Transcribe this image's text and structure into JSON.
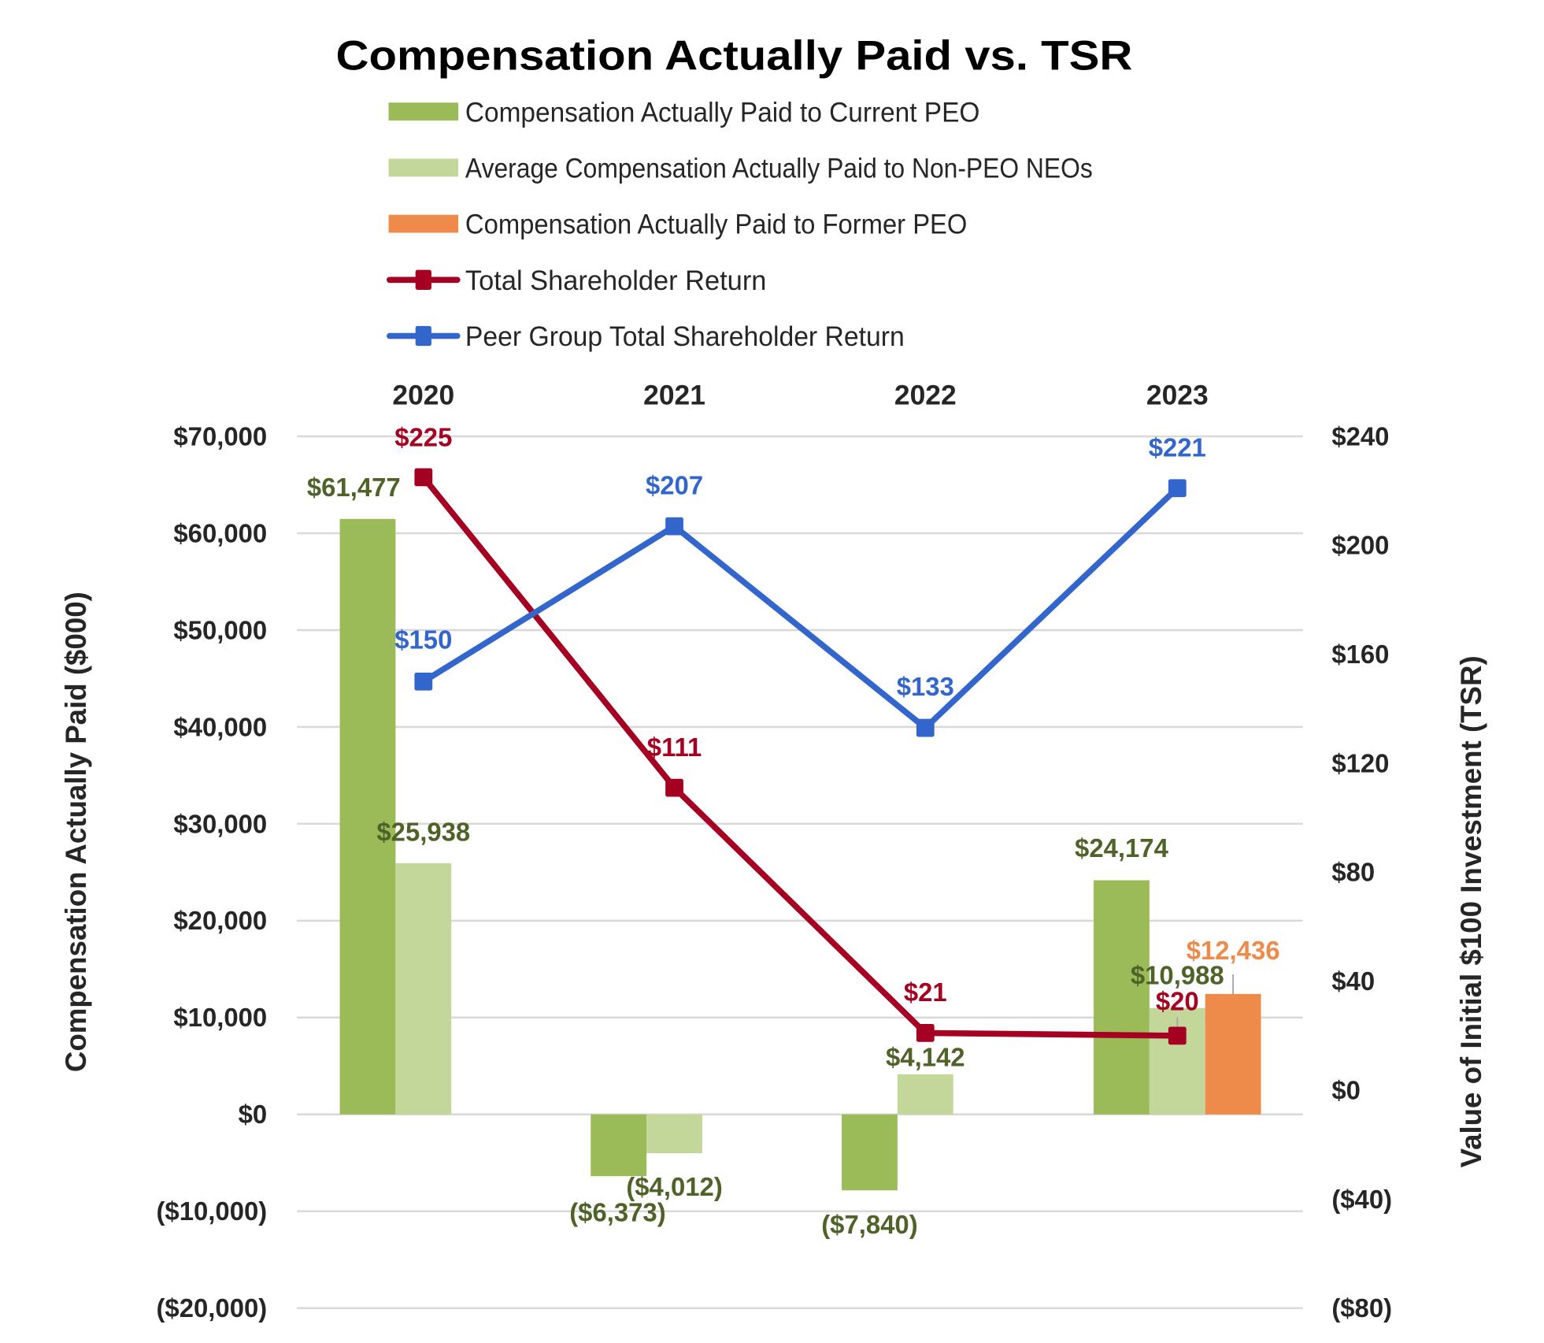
{
  "chart_data": {
    "type": "bar",
    "title": "Compensation Actually Paid vs. TSR",
    "categories": [
      "2020",
      "2021",
      "2022",
      "2023"
    ],
    "ylabel": "Compensation Actually Paid ($000)",
    "y2label": "Value of Initial $100 Investment (TSR)",
    "ylim": [
      -20000,
      70000
    ],
    "y2lim": [
      -80,
      240
    ],
    "yticks": [
      "$70,000",
      "$60,000",
      "$50,000",
      "$40,000",
      "$30,000",
      "$20,000",
      "$10,000",
      "$0",
      "($10,000)",
      "($20,000)"
    ],
    "ytick_values": [
      70000,
      60000,
      50000,
      40000,
      30000,
      20000,
      10000,
      0,
      -10000,
      -20000
    ],
    "y2ticks": [
      "$240",
      "$200",
      "$160",
      "$120",
      "$80",
      "$40",
      "$0",
      "($40)",
      "($80)"
    ],
    "y2tick_values": [
      240,
      200,
      160,
      120,
      80,
      40,
      0,
      -40,
      -80
    ],
    "grid": true,
    "legend_position": "top",
    "series": [
      {
        "name": "Compensation Actually Paid to Current PEO",
        "type": "bar",
        "axis": "left",
        "color": "#9BBB59",
        "label_color": "#4F6228",
        "values": [
          61477,
          -6373,
          -7840,
          24174
        ],
        "labels": [
          "$61,477",
          "($6,373)",
          "($7,840)",
          "$24,174"
        ]
      },
      {
        "name": "Average Compensation Actually Paid to Non-PEO NEOs",
        "type": "bar",
        "axis": "left",
        "color": "#C4D79B",
        "label_color": "#4F6228",
        "values": [
          25938,
          -4012,
          4142,
          10988
        ],
        "labels": [
          "$25,938",
          "($4,012)",
          "$4,142",
          "$10,988"
        ]
      },
      {
        "name": "Compensation Actually Paid to Former PEO",
        "type": "bar",
        "axis": "left",
        "color": "#EE8A4A",
        "label_color": "#EE8A4A",
        "values": [
          null,
          null,
          null,
          12436
        ],
        "labels": [
          "",
          "",
          "",
          "$12,436"
        ]
      },
      {
        "name": "Total Shareholder Return",
        "type": "line",
        "axis": "right",
        "color": "#A50021",
        "label_color": "#A50021",
        "values": [
          225,
          111,
          21,
          20
        ],
        "labels": [
          "$225",
          "$111",
          "$21",
          "$20"
        ]
      },
      {
        "name": "Peer Group Total Shareholder Return",
        "type": "line",
        "axis": "right",
        "color": "#3366CC",
        "label_color": "#3366CC",
        "values": [
          150,
          207,
          133,
          221
        ],
        "labels": [
          "$150",
          "$207",
          "$133",
          "$221"
        ]
      }
    ]
  }
}
